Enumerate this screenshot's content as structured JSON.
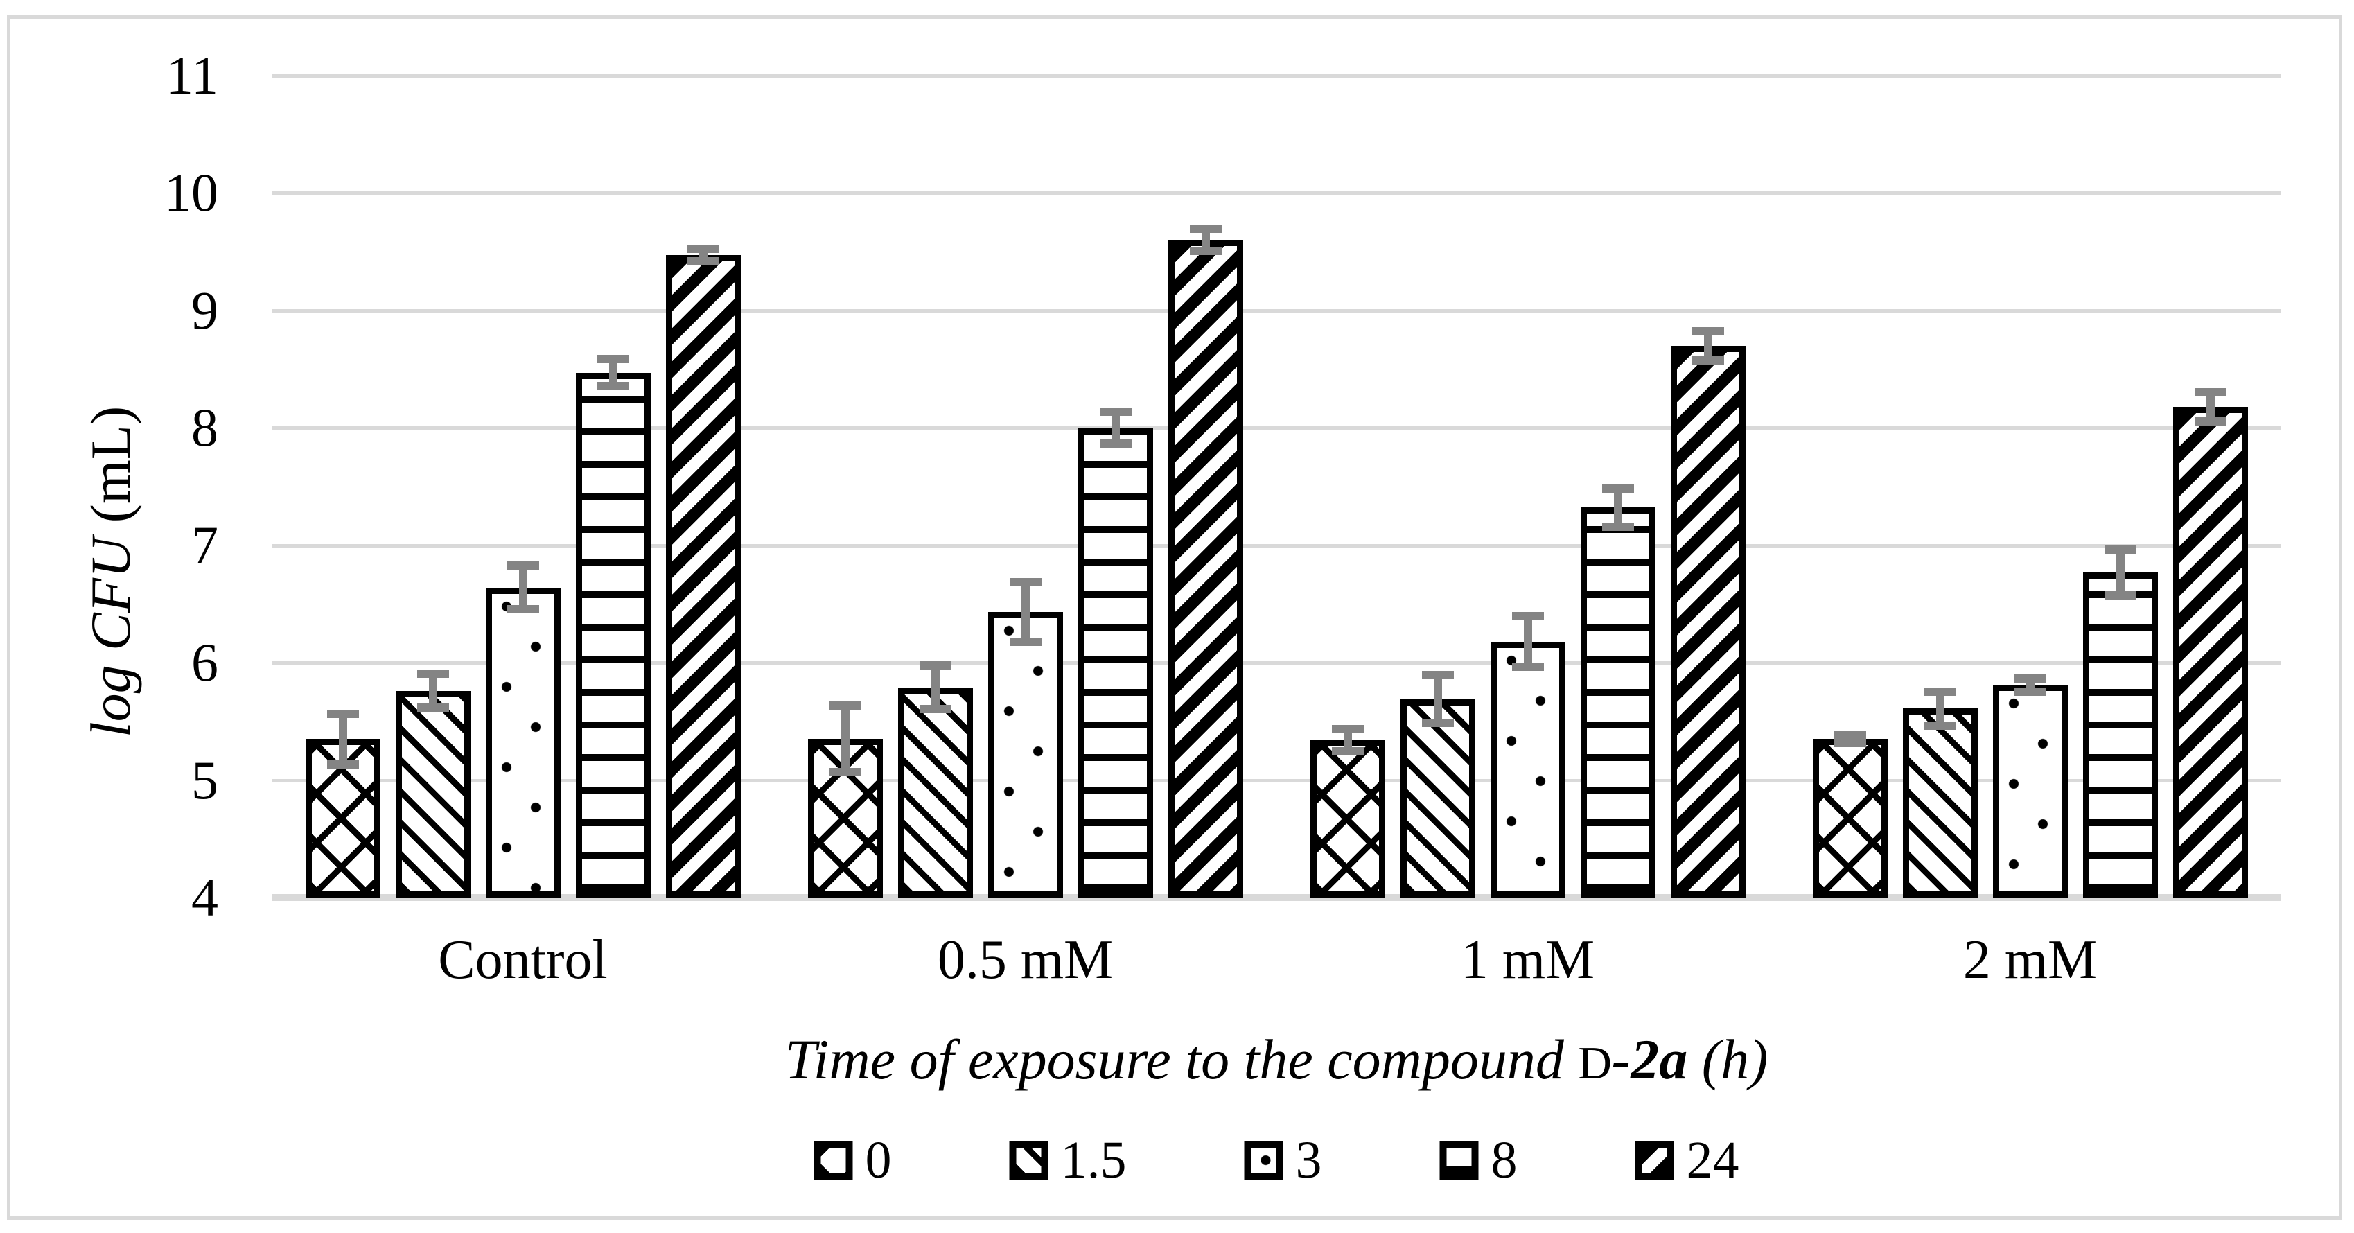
{
  "figure": {
    "y_title_main": "log CFU",
    "y_title_unit": " (mL)",
    "x_title_main": "Time of exposure to the compound ",
    "x_title_compound_prefix": "D",
    "x_title_compound": "-2a",
    "x_title_unit": " (h)"
  },
  "chart_data": {
    "type": "bar",
    "grouped": true,
    "title": "",
    "xlabel": "Time of exposure to the compound D-2a (h)",
    "ylabel": "log CFU (mL)",
    "ylim": [
      4,
      11
    ],
    "yticks": [
      11,
      10,
      9,
      8,
      7,
      6,
      5,
      4
    ],
    "grid": "horizontal",
    "legend_position": "bottom",
    "categories": [
      "Control",
      "0.5 mM",
      "1 mM",
      "2 mM"
    ],
    "series": [
      {
        "name": "0",
        "pattern": "diagonal-crosshatch",
        "values": [
          5.35,
          5.35,
          5.34,
          5.35
        ],
        "errors": [
          0.25,
          0.32,
          0.13,
          0.07
        ]
      },
      {
        "name": "1.5",
        "pattern": "diagonal-down",
        "values": [
          5.76,
          5.79,
          5.69,
          5.61
        ],
        "errors": [
          0.18,
          0.22,
          0.24,
          0.18
        ]
      },
      {
        "name": "3",
        "pattern": "dotted",
        "values": [
          6.64,
          6.43,
          6.18,
          5.81
        ],
        "errors": [
          0.22,
          0.29,
          0.25,
          0.09
        ]
      },
      {
        "name": "8",
        "pattern": "horizontal-lines",
        "values": [
          8.47,
          8.0,
          7.32,
          6.77
        ],
        "errors": [
          0.15,
          0.17,
          0.2,
          0.23
        ]
      },
      {
        "name": "24",
        "pattern": "diagonal-up-bold",
        "values": [
          9.47,
          9.6,
          8.7,
          8.18
        ],
        "errors": [
          0.09,
          0.13,
          0.16,
          0.16
        ]
      }
    ],
    "colors": {
      "bar_fill": "#ffffff",
      "bar_outline": "#000000",
      "gridline": "#d9d9d9",
      "error_bar": "#848484",
      "figure_border": "#d9d9d9",
      "text": "#000000"
    }
  }
}
